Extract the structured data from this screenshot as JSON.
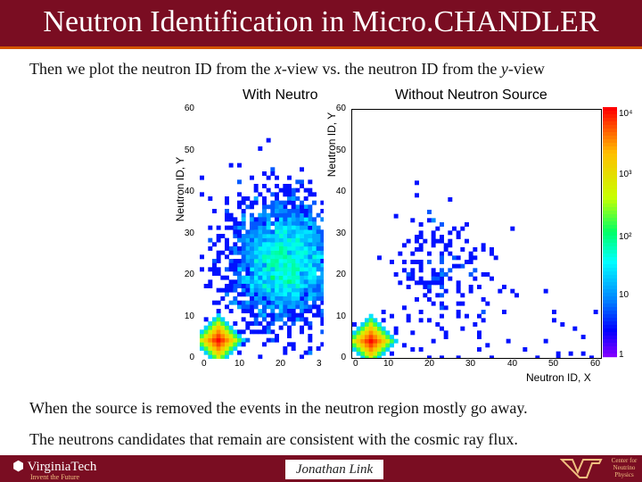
{
  "header": {
    "title": "Neutron Identification in Micro.CHANDLER"
  },
  "intro": {
    "pre": "Then we plot the neutron ID from the ",
    "x": "x",
    "mid": "-view vs. the neutron ID from the ",
    "y": "y",
    "post": "-view"
  },
  "plot_left": {
    "title": "With Neutro",
    "ylabel": "Neutron ID, Y",
    "yticks": [
      "60",
      "50",
      "40",
      "30",
      "20",
      "10",
      "0"
    ],
    "xticks": [
      "0",
      "10",
      "20",
      "3"
    ]
  },
  "plot_right": {
    "title": "Without Neutron Source",
    "ylabel": "Neutron ID, Y",
    "xlabel": "Neutron ID, X",
    "yticks": [
      "60",
      "50",
      "40",
      "30",
      "20",
      "10",
      "0"
    ],
    "xticks": [
      "0",
      "10",
      "20",
      "30",
      "40",
      "50",
      "60"
    ]
  },
  "colorbar": {
    "labels": [
      "10⁴",
      "10³",
      "10²",
      "10",
      "1"
    ]
  },
  "captions": {
    "line1": "When the source is removed the events in the neutron region mostly go away.",
    "line2": "The neutrons candidates that remain are consistent with the cosmic ray flux."
  },
  "footer": {
    "institution": "VirginiaTech",
    "tagline": "Invent the Future",
    "presenter": "Jonathan Link",
    "center": "Center for Neutrino Physics"
  },
  "colors": {
    "title_bg": "#7a0d22",
    "accent": "#d35400"
  }
}
